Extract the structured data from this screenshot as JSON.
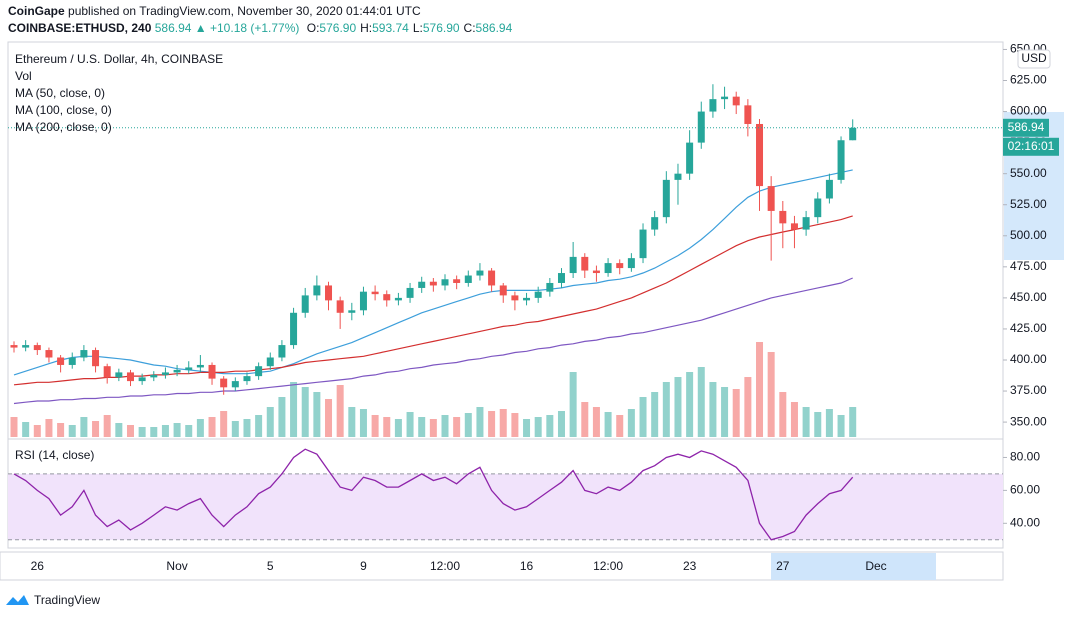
{
  "header": {
    "author": "CoinGape",
    "published": "published on TradingView.com, November 30, 2020 01:44:01 UTC",
    "symbol": "COINBASE:ETHUSD, 240",
    "last": "586.94",
    "change": "+10.18 (+1.77%)",
    "ohlc": [
      {
        "label": "O:",
        "value": "576.90"
      },
      {
        "label": "H:",
        "value": "593.74"
      },
      {
        "label": "L:",
        "value": "576.90"
      },
      {
        "label": "C:",
        "value": "586.94"
      }
    ]
  },
  "chart_data": {
    "type": "candlestick",
    "title": "Ethereum / U.S. Dollar, 4h, COINBASE",
    "currency": "USD",
    "last_price_label": "586.94",
    "countdown": "02:16:01",
    "categories": [
      null,
      null,
      "26",
      null,
      null,
      null,
      null,
      null,
      null,
      null,
      null,
      null,
      null,
      null,
      "Nov",
      null,
      null,
      null,
      null,
      null,
      null,
      null,
      "5",
      null,
      null,
      null,
      null,
      null,
      null,
      null,
      "9",
      null,
      null,
      null,
      null,
      null,
      null,
      "12:00",
      null,
      null,
      null,
      null,
      null,
      null,
      "16",
      null,
      null,
      null,
      null,
      null,
      null,
      "12:00",
      null,
      null,
      null,
      null,
      null,
      null,
      "23",
      null,
      null,
      null,
      null,
      null,
      null,
      null,
      "27",
      null,
      null,
      null,
      null,
      null,
      null,
      null,
      "Dec"
    ],
    "open": [
      412,
      410,
      412,
      408,
      402,
      396,
      402,
      408,
      395,
      386,
      390,
      383,
      386,
      388,
      390,
      392,
      394,
      396,
      385,
      378,
      383,
      387,
      395,
      402,
      412,
      438,
      452,
      460,
      448,
      438,
      440,
      455,
      453,
      448,
      450,
      458,
      463,
      460,
      465,
      462,
      468,
      472,
      460,
      452,
      448,
      450,
      455,
      462,
      470,
      483,
      472,
      470,
      478,
      474,
      482,
      505,
      515,
      545,
      550,
      575,
      600,
      610,
      612,
      605,
      590,
      540,
      520,
      510,
      505,
      515,
      530,
      545,
      576.9,
      null,
      null
    ],
    "high": [
      415,
      416,
      414,
      410,
      404,
      406,
      412,
      410,
      397,
      393,
      392,
      389,
      391,
      394,
      396,
      399,
      404,
      398,
      387,
      386,
      390,
      398,
      406,
      416,
      442,
      458,
      468,
      463,
      451,
      446,
      459,
      460,
      456,
      454,
      462,
      467,
      466,
      469,
      468,
      472,
      478,
      474,
      462,
      455,
      454,
      459,
      466,
      474,
      495,
      486,
      476,
      482,
      481,
      486,
      510,
      520,
      552,
      558,
      585,
      608,
      622,
      620,
      616,
      610,
      594,
      548,
      528,
      516,
      520,
      535,
      550,
      580,
      593.74,
      null,
      null
    ],
    "low": [
      406,
      407,
      404,
      398,
      390,
      393,
      399,
      390,
      381,
      383,
      379,
      380,
      383,
      385,
      387,
      389,
      390,
      380,
      372,
      375,
      380,
      384,
      392,
      399,
      409,
      434,
      448,
      440,
      425,
      432,
      436,
      448,
      443,
      444,
      446,
      454,
      455,
      456,
      457,
      459,
      464,
      455,
      446,
      440,
      444,
      446,
      451,
      458,
      466,
      466,
      463,
      467,
      469,
      471,
      478,
      500,
      510,
      525,
      545,
      570,
      595,
      602,
      598,
      580,
      520,
      480,
      490,
      490,
      500,
      510,
      526,
      542,
      576.9,
      null,
      null
    ],
    "close": [
      410,
      412,
      408,
      402,
      396,
      402,
      408,
      395,
      386,
      390,
      383,
      386,
      388,
      390,
      392,
      394,
      396,
      385,
      378,
      383,
      387,
      395,
      402,
      412,
      438,
      452,
      460,
      448,
      438,
      440,
      455,
      453,
      448,
      450,
      458,
      463,
      460,
      465,
      462,
      468,
      472,
      460,
      452,
      448,
      450,
      455,
      462,
      470,
      483,
      472,
      470,
      478,
      474,
      482,
      505,
      515,
      545,
      550,
      575,
      600,
      610,
      612,
      605,
      590,
      540,
      520,
      510,
      505,
      515,
      530,
      545,
      576.9,
      586.94,
      null,
      null
    ],
    "up_color": "#26a69a",
    "down_color": "#ef5350",
    "ylim": [
      338,
      656
    ],
    "yticks": [
      {
        "value": 350,
        "label": "350.00"
      },
      {
        "value": 375,
        "label": "375.00"
      },
      {
        "value": 400,
        "label": "400.00"
      },
      {
        "value": 425,
        "label": "425.00"
      },
      {
        "value": 450,
        "label": "450.00"
      },
      {
        "value": 475,
        "label": "475.00"
      },
      {
        "value": 500,
        "label": "500.00"
      },
      {
        "value": 525,
        "label": "525.00"
      },
      {
        "value": 550,
        "label": "550.00"
      },
      {
        "value": 575,
        "label": "575.00"
      },
      {
        "value": 600,
        "label": "600.00"
      },
      {
        "value": 625,
        "label": "625.00"
      },
      {
        "value": 650,
        "label": "650.00"
      }
    ],
    "volume": {
      "name": "Vol",
      "values": [
        20,
        15,
        12,
        18,
        14,
        12,
        20,
        16,
        22,
        14,
        12,
        10,
        10,
        12,
        14,
        12,
        18,
        20,
        26,
        16,
        18,
        22,
        30,
        40,
        55,
        50,
        45,
        38,
        52,
        30,
        28,
        22,
        20,
        18,
        25,
        20,
        18,
        22,
        20,
        24,
        30,
        26,
        28,
        24,
        18,
        20,
        22,
        26,
        65,
        35,
        30,
        25,
        22,
        28,
        40,
        45,
        55,
        60,
        65,
        70,
        55,
        50,
        48,
        60,
        95,
        85,
        45,
        35,
        30,
        25,
        28,
        22,
        30,
        null,
        null
      ]
    },
    "series": [
      {
        "name": "MA (50, close, 0)",
        "color": "#3d9fdb",
        "values": [
          388,
          391,
          394,
          397,
          400,
          402,
          403,
          403,
          402,
          401,
          400,
          398,
          396,
          395,
          393,
          392,
          391,
          390,
          389,
          389,
          389,
          390,
          391,
          394,
          397,
          401,
          405,
          408,
          411,
          414,
          418,
          422,
          426,
          430,
          434,
          438,
          441,
          444,
          447,
          450,
          453,
          455,
          456,
          456,
          456,
          456,
          457,
          458,
          460,
          461,
          462,
          464,
          465,
          467,
          470,
          474,
          479,
          484,
          490,
          497,
          505,
          514,
          523,
          531,
          536,
          539,
          541,
          543,
          545,
          547,
          549,
          551,
          553,
          null,
          null
        ]
      },
      {
        "name": "MA (100, close, 0)",
        "color": "#d32f2f",
        "values": [
          380,
          381,
          382,
          382,
          383,
          384,
          385,
          385,
          386,
          386,
          387,
          387,
          388,
          388,
          389,
          389,
          390,
          390,
          390,
          391,
          391,
          392,
          393,
          394,
          396,
          398,
          399,
          400,
          401,
          402,
          403,
          405,
          407,
          409,
          411,
          413,
          415,
          417,
          419,
          421,
          423,
          425,
          427,
          428,
          430,
          431,
          433,
          435,
          437,
          439,
          441,
          444,
          447,
          450,
          454,
          458,
          462,
          467,
          472,
          477,
          482,
          487,
          492,
          496,
          499,
          501,
          503,
          505,
          507,
          509,
          511,
          513,
          516,
          null,
          null
        ]
      },
      {
        "name": "MA (200, close, 0)",
        "color": "#7e57c2",
        "values": [
          365,
          366,
          367,
          367,
          368,
          368,
          369,
          369,
          370,
          370,
          371,
          371,
          372,
          372,
          373,
          373,
          374,
          374,
          375,
          375,
          376,
          377,
          378,
          379,
          380,
          381,
          382,
          383,
          384,
          385,
          387,
          388,
          390,
          391,
          393,
          394,
          396,
          397,
          398,
          400,
          401,
          403,
          404,
          406,
          407,
          409,
          410,
          412,
          413,
          415,
          416,
          418,
          419,
          421,
          422,
          424,
          426,
          428,
          430,
          432,
          435,
          438,
          441,
          444,
          447,
          450,
          452,
          454,
          456,
          458,
          460,
          462,
          466,
          null,
          null
        ]
      }
    ],
    "rsi": {
      "name": "RSI (14, close)",
      "color": "#8e24aa",
      "band": [
        30,
        70
      ],
      "ylim": [
        25,
        90
      ],
      "yticks": [
        {
          "value": 40,
          "label": "40.00"
        },
        {
          "value": 60,
          "label": "60.00"
        },
        {
          "value": 80,
          "label": "80.00"
        }
      ],
      "values": [
        70,
        66,
        60,
        55,
        45,
        50,
        60,
        45,
        38,
        42,
        36,
        40,
        45,
        50,
        48,
        52,
        55,
        45,
        38,
        45,
        50,
        58,
        62,
        70,
        80,
        85,
        82,
        72,
        62,
        60,
        68,
        66,
        62,
        62,
        66,
        70,
        66,
        68,
        64,
        70,
        74,
        60,
        52,
        48,
        50,
        55,
        60,
        65,
        72,
        60,
        58,
        62,
        60,
        65,
        72,
        75,
        80,
        82,
        80,
        84,
        82,
        78,
        74,
        66,
        40,
        30,
        32,
        35,
        45,
        52,
        58,
        60,
        68,
        null,
        null
      ]
    }
  },
  "footer": {
    "brand": "TradingView"
  }
}
